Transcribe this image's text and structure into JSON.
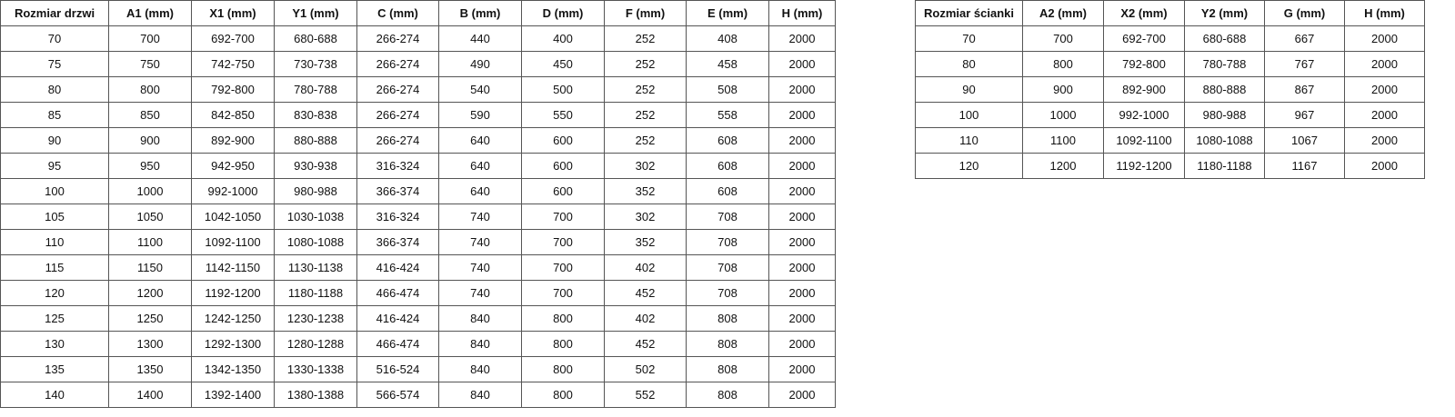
{
  "doors_table": {
    "headers": [
      "Rozmiar drzwi",
      "A1 (mm)",
      "X1 (mm)",
      "Y1 (mm)",
      "C (mm)",
      "B (mm)",
      "D (mm)",
      "F (mm)",
      "E (mm)",
      "H (mm)"
    ],
    "rows": [
      [
        "70",
        "700",
        "692-700",
        "680-688",
        "266-274",
        "440",
        "400",
        "252",
        "408",
        "2000"
      ],
      [
        "75",
        "750",
        "742-750",
        "730-738",
        "266-274",
        "490",
        "450",
        "252",
        "458",
        "2000"
      ],
      [
        "80",
        "800",
        "792-800",
        "780-788",
        "266-274",
        "540",
        "500",
        "252",
        "508",
        "2000"
      ],
      [
        "85",
        "850",
        "842-850",
        "830-838",
        "266-274",
        "590",
        "550",
        "252",
        "558",
        "2000"
      ],
      [
        "90",
        "900",
        "892-900",
        "880-888",
        "266-274",
        "640",
        "600",
        "252",
        "608",
        "2000"
      ],
      [
        "95",
        "950",
        "942-950",
        "930-938",
        "316-324",
        "640",
        "600",
        "302",
        "608",
        "2000"
      ],
      [
        "100",
        "1000",
        "992-1000",
        "980-988",
        "366-374",
        "640",
        "600",
        "352",
        "608",
        "2000"
      ],
      [
        "105",
        "1050",
        "1042-1050",
        "1030-1038",
        "316-324",
        "740",
        "700",
        "302",
        "708",
        "2000"
      ],
      [
        "110",
        "1100",
        "1092-1100",
        "1080-1088",
        "366-374",
        "740",
        "700",
        "352",
        "708",
        "2000"
      ],
      [
        "115",
        "1150",
        "1142-1150",
        "1130-1138",
        "416-424",
        "740",
        "700",
        "402",
        "708",
        "2000"
      ],
      [
        "120",
        "1200",
        "1192-1200",
        "1180-1188",
        "466-474",
        "740",
        "700",
        "452",
        "708",
        "2000"
      ],
      [
        "125",
        "1250",
        "1242-1250",
        "1230-1238",
        "416-424",
        "840",
        "800",
        "402",
        "808",
        "2000"
      ],
      [
        "130",
        "1300",
        "1292-1300",
        "1280-1288",
        "466-474",
        "840",
        "800",
        "452",
        "808",
        "2000"
      ],
      [
        "135",
        "1350",
        "1342-1350",
        "1330-1338",
        "516-524",
        "840",
        "800",
        "502",
        "808",
        "2000"
      ],
      [
        "140",
        "1400",
        "1392-1400",
        "1380-1388",
        "566-574",
        "840",
        "800",
        "552",
        "808",
        "2000"
      ]
    ]
  },
  "wall_table": {
    "headers": [
      "Rozmiar ścianki",
      "A2 (mm)",
      "X2 (mm)",
      "Y2 (mm)",
      "G (mm)",
      "H (mm)"
    ],
    "rows": [
      [
        "70",
        "700",
        "692-700",
        "680-688",
        "667",
        "2000"
      ],
      [
        "80",
        "800",
        "792-800",
        "780-788",
        "767",
        "2000"
      ],
      [
        "90",
        "900",
        "892-900",
        "880-888",
        "867",
        "2000"
      ],
      [
        "100",
        "1000",
        "992-1000",
        "980-988",
        "967",
        "2000"
      ],
      [
        "110",
        "1100",
        "1092-1100",
        "1080-1088",
        "1067",
        "2000"
      ],
      [
        "120",
        "1200",
        "1192-1200",
        "1180-1188",
        "1167",
        "2000"
      ]
    ]
  }
}
